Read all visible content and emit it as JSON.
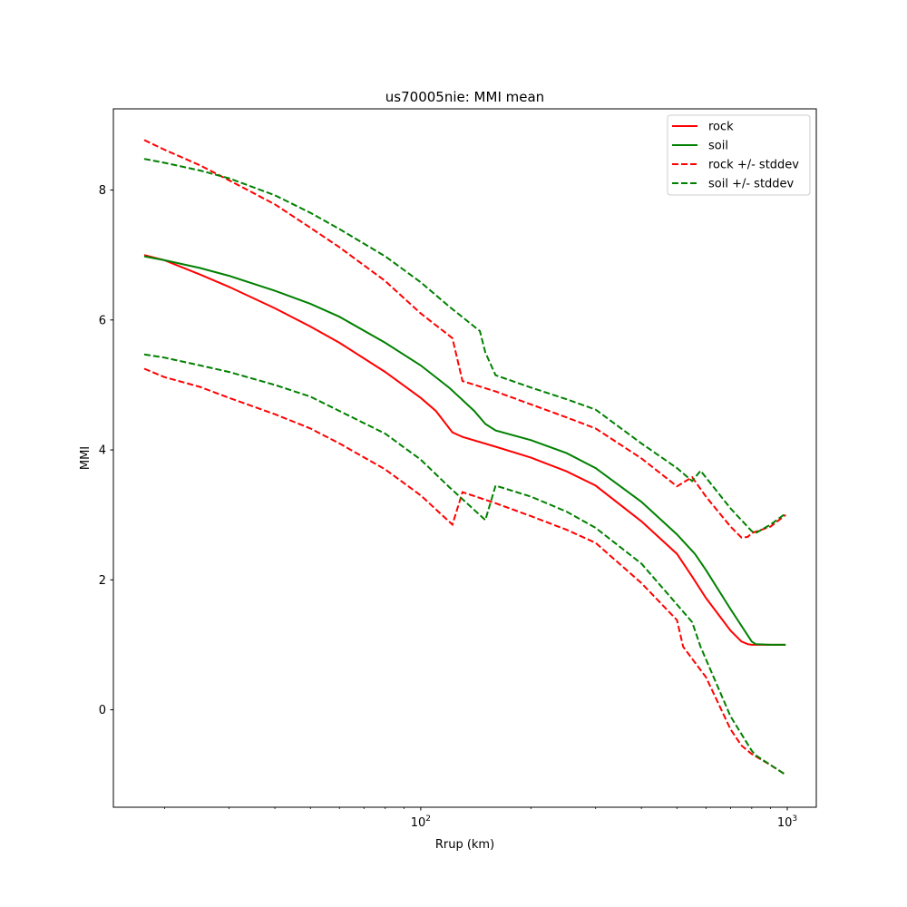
{
  "chart_data": {
    "type": "line",
    "title": "us70005nie: MMI mean",
    "xlabel": "Rrup (km)",
    "ylabel": "MMI",
    "xscale": "log",
    "xlim": [
      14.5,
      1200
    ],
    "ylim": [
      -1.5,
      9.25
    ],
    "xticks": [
      {
        "value": 100,
        "base": "10",
        "exp": "2"
      },
      {
        "value": 1000,
        "base": "10",
        "exp": "3"
      }
    ],
    "yticks": [
      0,
      2,
      4,
      6,
      8
    ],
    "grid": false,
    "legend": "top-right",
    "series": [
      {
        "name": "rock",
        "color": "#ff0000",
        "dash": "solid",
        "x": [
          17.6,
          20,
          25,
          30,
          40,
          50,
          60,
          80,
          100,
          110,
          122,
          130,
          160,
          200,
          250,
          300,
          400,
          500,
          550,
          600,
          700,
          750,
          780,
          800,
          900,
          990
        ],
        "y": [
          7.0,
          6.92,
          6.7,
          6.51,
          6.18,
          5.9,
          5.65,
          5.2,
          4.8,
          4.6,
          4.27,
          4.2,
          4.05,
          3.88,
          3.67,
          3.45,
          2.9,
          2.4,
          2.05,
          1.72,
          1.22,
          1.05,
          1.01,
          1.0,
          1.0,
          1.0
        ]
      },
      {
        "name": "soil",
        "color": "#008000",
        "dash": "solid",
        "x": [
          17.6,
          20,
          25,
          30,
          40,
          50,
          60,
          80,
          100,
          120,
          140,
          150,
          160,
          200,
          250,
          300,
          400,
          500,
          560,
          600,
          700,
          800,
          820,
          900,
          990
        ],
        "y": [
          6.98,
          6.92,
          6.8,
          6.68,
          6.45,
          6.25,
          6.05,
          5.65,
          5.3,
          4.95,
          4.6,
          4.4,
          4.3,
          4.15,
          3.95,
          3.72,
          3.2,
          2.7,
          2.4,
          2.15,
          1.55,
          1.05,
          1.01,
          1.0,
          1.0
        ]
      },
      {
        "name": "rock +/- stddev",
        "color": "#ff0000",
        "dash": "dashed",
        "x": [
          17.6,
          20,
          25,
          30,
          40,
          50,
          60,
          80,
          100,
          122,
          130,
          160,
          200,
          250,
          300,
          400,
          500,
          550,
          600,
          700,
          750,
          780,
          800,
          900,
          990
        ],
        "y": [
          8.77,
          8.62,
          8.38,
          8.15,
          7.78,
          7.42,
          7.12,
          6.6,
          6.1,
          5.72,
          5.06,
          4.9,
          4.7,
          4.5,
          4.33,
          3.87,
          3.44,
          3.58,
          3.28,
          2.82,
          2.65,
          2.66,
          2.72,
          2.82,
          3.0
        ]
      },
      {
        "name": "",
        "color": "#ff0000",
        "dash": "dashed",
        "x": [
          17.6,
          20,
          25,
          30,
          40,
          50,
          60,
          80,
          100,
          122,
          130,
          160,
          200,
          250,
          300,
          400,
          500,
          520,
          600,
          700,
          750,
          800,
          900,
          990
        ],
        "y": [
          5.25,
          5.12,
          4.97,
          4.8,
          4.55,
          4.33,
          4.1,
          3.7,
          3.3,
          2.85,
          3.35,
          3.18,
          2.98,
          2.77,
          2.57,
          1.95,
          1.38,
          0.97,
          0.5,
          -0.3,
          -0.55,
          -0.68,
          -0.85,
          -1.0
        ]
      },
      {
        "name": "soil +/- stddev",
        "color": "#008000",
        "dash": "dashed",
        "x": [
          17.6,
          20,
          25,
          30,
          40,
          50,
          60,
          80,
          100,
          120,
          145,
          150,
          160,
          200,
          250,
          300,
          400,
          500,
          550,
          580,
          700,
          800,
          820,
          900,
          990
        ],
        "y": [
          8.48,
          8.42,
          8.3,
          8.18,
          7.92,
          7.65,
          7.4,
          6.98,
          6.58,
          6.2,
          5.83,
          5.5,
          5.15,
          4.96,
          4.78,
          4.62,
          4.1,
          3.72,
          3.52,
          3.68,
          3.1,
          2.75,
          2.72,
          2.85,
          3.02
        ]
      },
      {
        "name": "",
        "color": "#008000",
        "dash": "dashed",
        "x": [
          17.6,
          20,
          25,
          30,
          40,
          50,
          60,
          80,
          100,
          120,
          150,
          160,
          200,
          250,
          300,
          400,
          500,
          550,
          580,
          700,
          800,
          820,
          900,
          990
        ],
        "y": [
          5.47,
          5.42,
          5.3,
          5.2,
          5.0,
          4.82,
          4.6,
          4.25,
          3.85,
          3.42,
          2.92,
          3.45,
          3.28,
          3.05,
          2.8,
          2.25,
          1.62,
          1.35,
          0.97,
          -0.1,
          -0.63,
          -0.7,
          -0.85,
          -1.0
        ]
      }
    ]
  }
}
